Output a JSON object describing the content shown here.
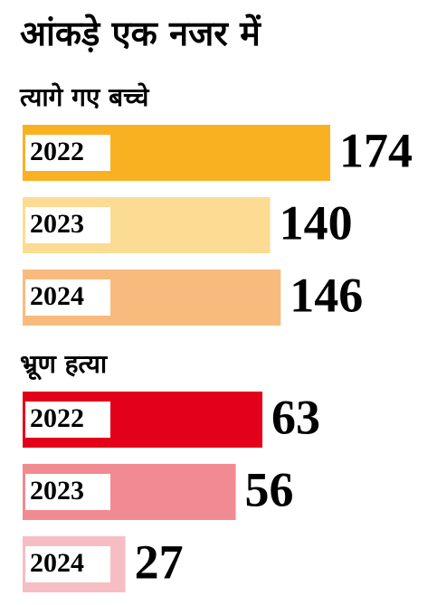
{
  "title": "आंकड़े एक नजर में",
  "chart_data": [
    {
      "type": "bar",
      "title": "त्यागे गए बच्चे",
      "categories": [
        "2022",
        "2023",
        "2024"
      ],
      "values": [
        174,
        140,
        146
      ],
      "colors": [
        "#f9b122",
        "#fcdb93",
        "#f9bb7d"
      ]
    },
    {
      "type": "bar",
      "title": "भ्रूण हत्या",
      "categories": [
        "2022",
        "2023",
        "2024"
      ],
      "values": [
        63,
        56,
        27
      ],
      "colors": [
        "#e3001b",
        "#f28a92",
        "#f6bec3"
      ]
    }
  ]
}
